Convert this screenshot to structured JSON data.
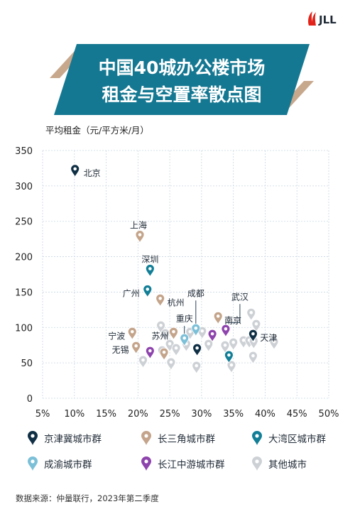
{
  "brand": {
    "name": "JLL"
  },
  "title": {
    "line1": "中国40城办公楼市场",
    "line2": "租金与空置率散点图"
  },
  "source": "数据来源：仲量联行，2023年第二季度",
  "colors": {
    "jingjinji": "#0f2f45",
    "changsanjiao": "#c4a48a",
    "dawanqu": "#127f97",
    "chengyu": "#7cc0d8",
    "changjiang": "#8e44ad",
    "other": "#cdd1d5",
    "banner_fill": "#157892",
    "banner_accent": "#c7a88d",
    "brand_red": "#e2231a"
  },
  "legend": [
    {
      "key": "jingjinji",
      "label": "京津冀城市群"
    },
    {
      "key": "changsanjiao",
      "label": "长三角城市群"
    },
    {
      "key": "dawanqu",
      "label": "大湾区城市群"
    },
    {
      "key": "chengyu",
      "label": "成渝城市群"
    },
    {
      "key": "changjiang",
      "label": "长江中游城市群"
    },
    {
      "key": "other",
      "label": "其他城市"
    }
  ],
  "chart_data": {
    "type": "scatter",
    "ylabel": "平均租金（元/平方米/月）",
    "xlabel": "",
    "xlim": [
      5,
      50
    ],
    "ylim": [
      0,
      350
    ],
    "x_ticks": [
      5,
      10,
      15,
      20,
      25,
      30,
      35,
      40,
      45,
      50
    ],
    "x_tick_labels": [
      "5%",
      "10%",
      "15%",
      "20%",
      "25%",
      "30%",
      "35%",
      "40%",
      "45%",
      "50%"
    ],
    "y_ticks": [
      0,
      50,
      100,
      150,
      200,
      250,
      300,
      350
    ],
    "y_tick_labels": [
      "0",
      "50",
      "100",
      "150",
      "200",
      "250",
      "300",
      "350"
    ],
    "grid": true,
    "points": [
      {
        "x": 10.1,
        "y": 319,
        "group": "jingjinji",
        "label": "北京"
      },
      {
        "x": 20.3,
        "y": 226,
        "group": "changsanjiao",
        "label": "上海"
      },
      {
        "x": 21.9,
        "y": 178,
        "group": "dawanqu",
        "label": "深圳"
      },
      {
        "x": 21.5,
        "y": 149,
        "group": "dawanqu",
        "label": "广州"
      },
      {
        "x": 23.5,
        "y": 136,
        "group": "changsanjiao",
        "label": "杭州"
      },
      {
        "x": 19.1,
        "y": 89,
        "group": "changsanjiao",
        "label": "宁波"
      },
      {
        "x": 19.7,
        "y": 69,
        "group": "changsanjiao",
        "label": "无锡"
      },
      {
        "x": 25.6,
        "y": 89,
        "group": "changsanjiao",
        "label": "苏州"
      },
      {
        "x": 21.9,
        "y": 62,
        "group": "changjiang",
        "label": ""
      },
      {
        "x": 24.1,
        "y": 60,
        "group": "changsanjiao",
        "label": ""
      },
      {
        "x": 27.3,
        "y": 80,
        "group": "chengyu",
        "label": "重庆"
      },
      {
        "x": 29.1,
        "y": 94,
        "group": "chengyu",
        "label": "成都"
      },
      {
        "x": 29.3,
        "y": 66,
        "group": "jingjinji",
        "label": ""
      },
      {
        "x": 32.6,
        "y": 111,
        "group": "changsanjiao",
        "label": "南京"
      },
      {
        "x": 33.8,
        "y": 93,
        "group": "changjiang",
        "label": "武汉"
      },
      {
        "x": 31.7,
        "y": 86,
        "group": "changjiang",
        "label": ""
      },
      {
        "x": 34.3,
        "y": 56,
        "group": "dawanqu",
        "label": ""
      },
      {
        "x": 38.1,
        "y": 86,
        "group": "jingjinji",
        "label": "天津"
      },
      {
        "x": 23.6,
        "y": 98,
        "group": "other",
        "label": ""
      },
      {
        "x": 24.3,
        "y": 87,
        "group": "other",
        "label": ""
      },
      {
        "x": 25.0,
        "y": 72,
        "group": "other",
        "label": ""
      },
      {
        "x": 23.8,
        "y": 63,
        "group": "other",
        "label": ""
      },
      {
        "x": 26.0,
        "y": 66,
        "group": "other",
        "label": ""
      },
      {
        "x": 25.2,
        "y": 46,
        "group": "other",
        "label": ""
      },
      {
        "x": 20.8,
        "y": 49,
        "group": "other",
        "label": ""
      },
      {
        "x": 27.6,
        "y": 72,
        "group": "other",
        "label": ""
      },
      {
        "x": 28.2,
        "y": 89,
        "group": "other",
        "label": ""
      },
      {
        "x": 30.1,
        "y": 90,
        "group": "other",
        "label": ""
      },
      {
        "x": 29.2,
        "y": 41,
        "group": "other",
        "label": ""
      },
      {
        "x": 31.1,
        "y": 72,
        "group": "other",
        "label": ""
      },
      {
        "x": 33.7,
        "y": 70,
        "group": "other",
        "label": ""
      },
      {
        "x": 34.7,
        "y": 42,
        "group": "other",
        "label": ""
      },
      {
        "x": 35.0,
        "y": 74,
        "group": "other",
        "label": ""
      },
      {
        "x": 36.6,
        "y": 77,
        "group": "other",
        "label": ""
      },
      {
        "x": 37.5,
        "y": 77,
        "group": "other",
        "label": ""
      },
      {
        "x": 37.8,
        "y": 116,
        "group": "other",
        "label": ""
      },
      {
        "x": 38.6,
        "y": 100,
        "group": "other",
        "label": ""
      },
      {
        "x": 38.2,
        "y": 76,
        "group": "other",
        "label": ""
      },
      {
        "x": 38.1,
        "y": 55,
        "group": "other",
        "label": ""
      },
      {
        "x": 41.4,
        "y": 75,
        "group": "other",
        "label": ""
      }
    ]
  }
}
